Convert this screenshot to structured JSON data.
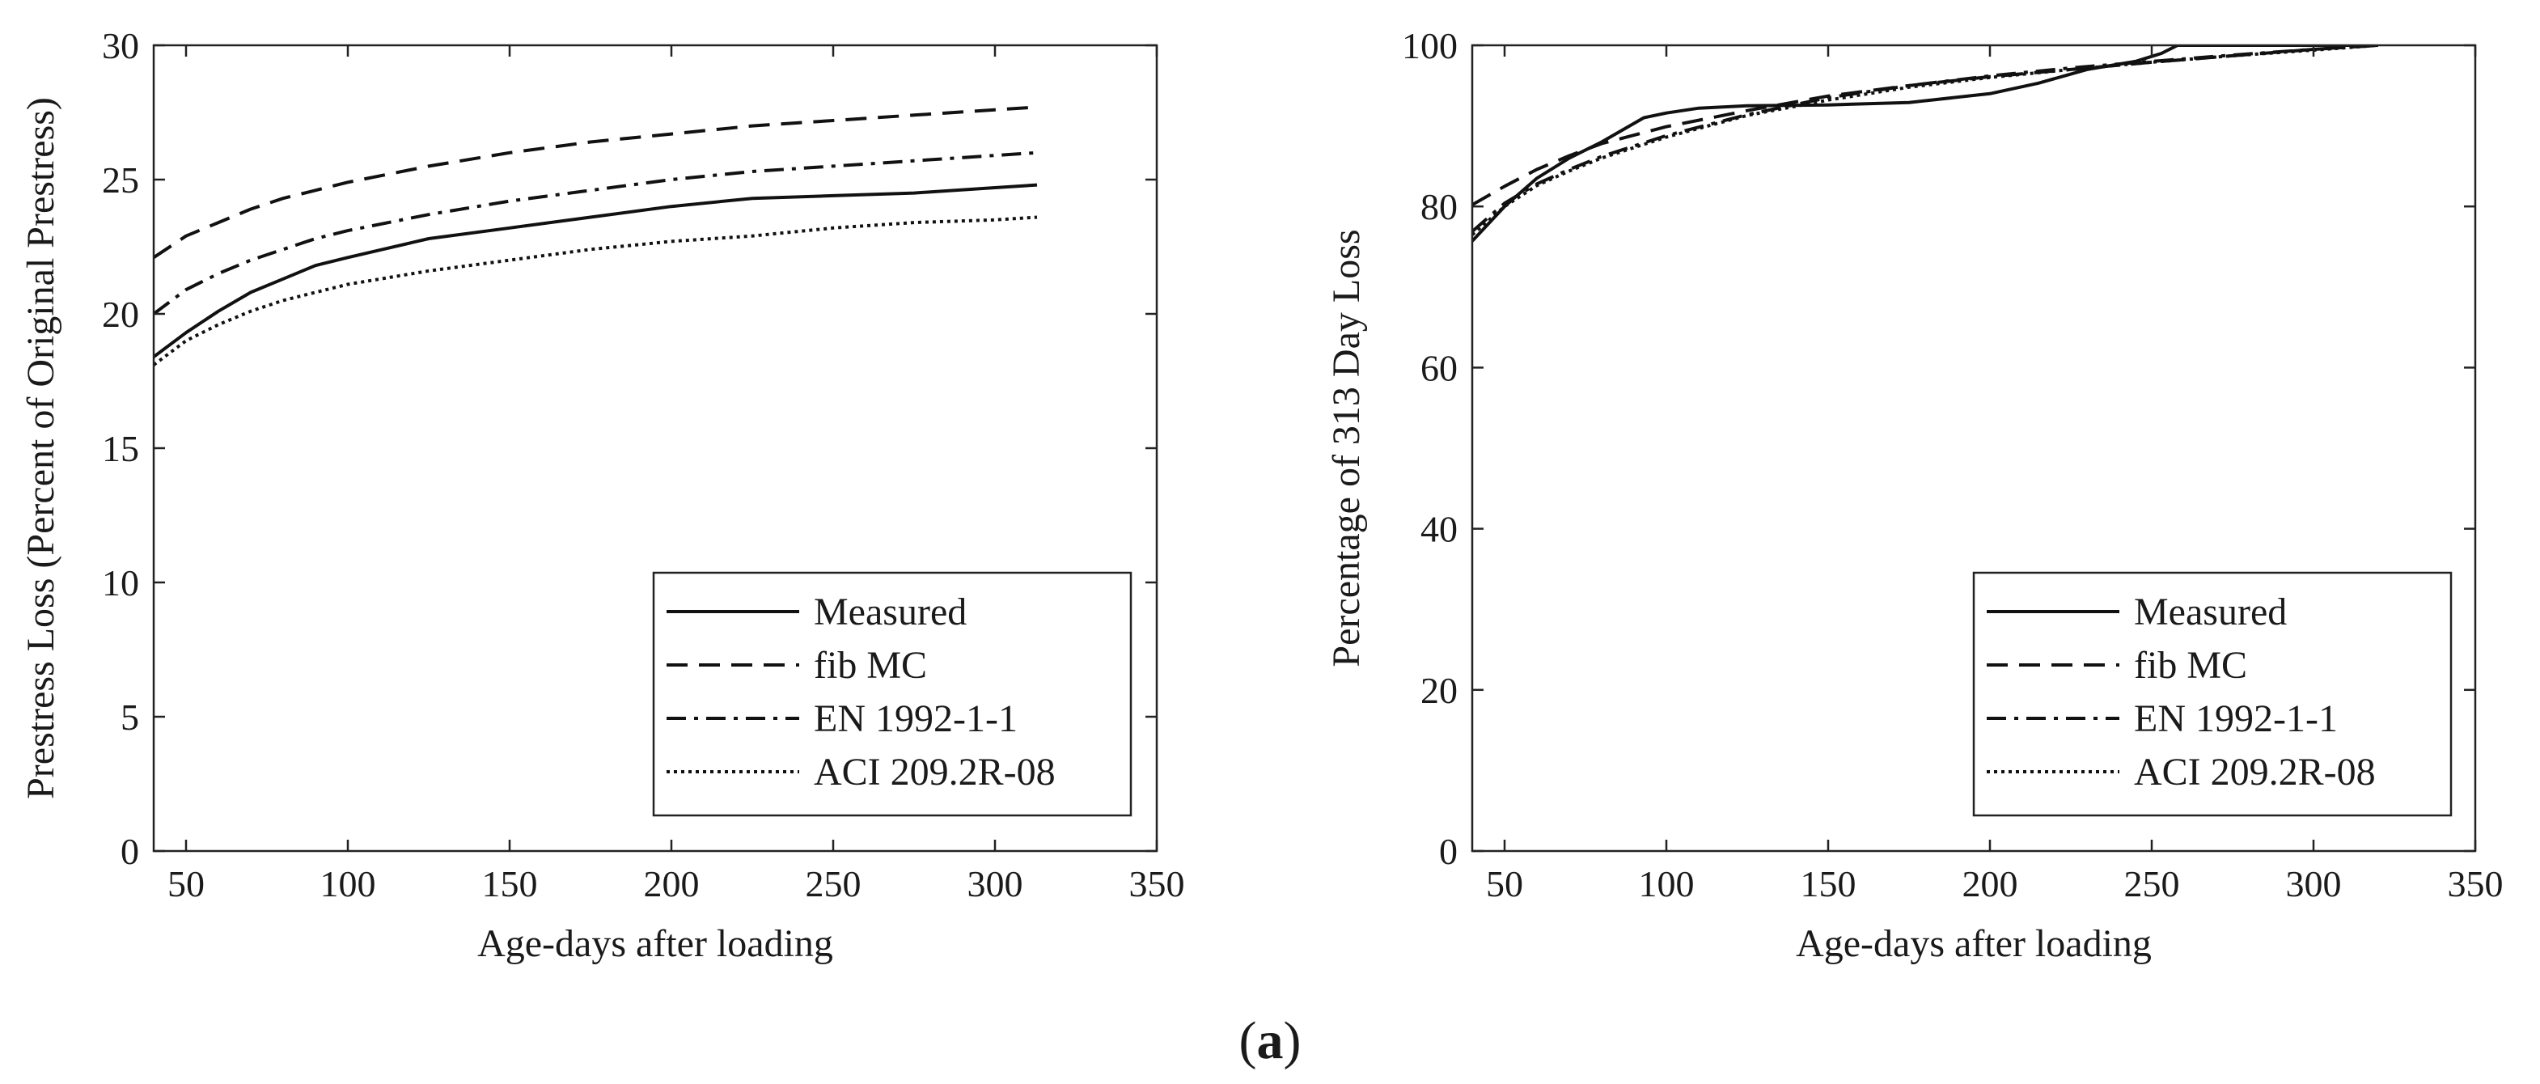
{
  "figure_label": "a",
  "chart_data": [
    {
      "type": "line",
      "title": "",
      "xlabel": "Age-days after loading",
      "ylabel": "Prestress Loss (Percent of Original Prestress)",
      "xlim": [
        40,
        350
      ],
      "ylim": [
        0,
        30
      ],
      "xticks": [
        50,
        100,
        150,
        200,
        250,
        300,
        350
      ],
      "yticks": [
        0,
        5,
        10,
        15,
        20,
        25,
        30
      ],
      "grid": false,
      "legend_position": "bottom-right",
      "series": [
        {
          "name": "Measured",
          "style": "solid",
          "x": [
            40,
            50,
            60,
            70,
            80,
            90,
            100,
            125,
            150,
            175,
            200,
            225,
            250,
            275,
            300,
            313
          ],
          "y": [
            18.4,
            19.3,
            20.1,
            20.8,
            21.3,
            21.8,
            22.1,
            22.8,
            23.2,
            23.6,
            24.0,
            24.3,
            24.4,
            24.5,
            24.7,
            24.8
          ]
        },
        {
          "name": "fib MC",
          "style": "dashed",
          "x": [
            40,
            50,
            60,
            70,
            80,
            90,
            100,
            125,
            150,
            175,
            200,
            225,
            250,
            275,
            300,
            313
          ],
          "y": [
            22.1,
            22.9,
            23.4,
            23.9,
            24.3,
            24.6,
            24.9,
            25.5,
            26.0,
            26.4,
            26.7,
            27.0,
            27.2,
            27.4,
            27.6,
            27.7
          ]
        },
        {
          "name": "EN 1992-1-1",
          "style": "dashdot",
          "x": [
            40,
            50,
            60,
            70,
            80,
            90,
            100,
            125,
            150,
            175,
            200,
            225,
            250,
            275,
            300,
            313
          ],
          "y": [
            20.0,
            20.9,
            21.5,
            22.0,
            22.4,
            22.8,
            23.1,
            23.7,
            24.2,
            24.6,
            25.0,
            25.3,
            25.5,
            25.7,
            25.9,
            26.0
          ]
        },
        {
          "name": "ACI 209.2R-08",
          "style": "dotted",
          "x": [
            40,
            50,
            60,
            70,
            80,
            90,
            100,
            125,
            150,
            175,
            200,
            225,
            250,
            275,
            300,
            313
          ],
          "y": [
            18.1,
            19.0,
            19.6,
            20.1,
            20.5,
            20.8,
            21.1,
            21.6,
            22.0,
            22.4,
            22.7,
            22.9,
            23.2,
            23.4,
            23.5,
            23.6
          ]
        }
      ]
    },
    {
      "type": "line",
      "title": "",
      "xlabel": "Age-days after loading",
      "ylabel": "Percentage of 313 Day Loss",
      "xlim": [
        40,
        350
      ],
      "ylim": [
        0,
        100
      ],
      "xticks": [
        50,
        100,
        150,
        200,
        250,
        300,
        350
      ],
      "yticks": [
        0,
        20,
        40,
        60,
        80,
        100
      ],
      "grid": false,
      "legend_position": "bottom-right",
      "series": [
        {
          "name": "Measured",
          "style": "solid",
          "x": [
            40,
            50,
            60,
            70,
            80,
            93,
            100,
            110,
            125,
            150,
            175,
            200,
            215,
            230,
            245,
            253,
            258,
            275,
            300,
            320
          ],
          "y": [
            75.7,
            80.0,
            83.5,
            86.0,
            88.0,
            91.0,
            91.6,
            92.2,
            92.5,
            92.6,
            92.9,
            94.0,
            95.3,
            97.0,
            98.0,
            99.0,
            100,
            100,
            100,
            100
          ]
        },
        {
          "name": "fib MC",
          "style": "dashed",
          "x": [
            40,
            50,
            60,
            70,
            80,
            100,
            125,
            150,
            175,
            200,
            225,
            250,
            275,
            300,
            320
          ],
          "y": [
            80.2,
            82.5,
            84.6,
            86.3,
            87.8,
            89.9,
            91.9,
            93.7,
            95.0,
            96.1,
            97.0,
            97.9,
            98.7,
            99.5,
            100
          ]
        },
        {
          "name": "EN 1992-1-1",
          "style": "dashdot",
          "x": [
            40,
            50,
            60,
            70,
            80,
            100,
            125,
            150,
            175,
            200,
            225,
            250,
            275,
            300,
            320
          ],
          "y": [
            76.9,
            80.4,
            82.8,
            84.6,
            86.2,
            88.8,
            91.4,
            93.5,
            95.0,
            96.2,
            97.2,
            98.0,
            98.8,
            99.5,
            100
          ]
        },
        {
          "name": "ACI 209.2R-08",
          "style": "dotted",
          "x": [
            40,
            50,
            60,
            70,
            80,
            100,
            125,
            150,
            175,
            200,
            225,
            250,
            275,
            300,
            320
          ],
          "y": [
            76.5,
            80.0,
            82.6,
            84.4,
            86.0,
            88.6,
            91.3,
            93.2,
            94.8,
            96.0,
            97.0,
            97.9,
            98.7,
            99.4,
            100
          ]
        }
      ]
    }
  ]
}
